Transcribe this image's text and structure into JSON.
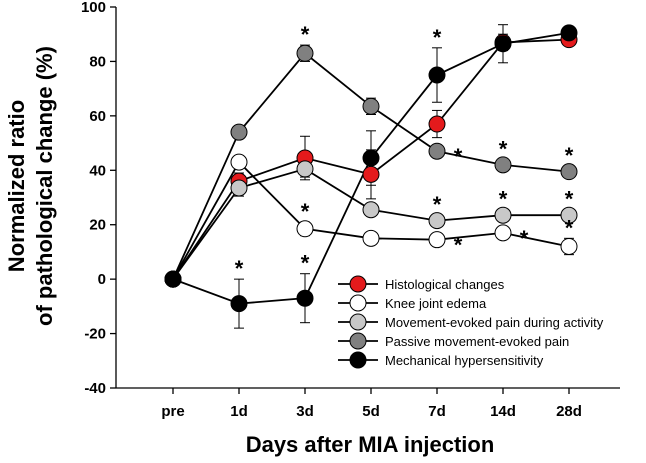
{
  "chart_data": {
    "type": "line",
    "title": "",
    "xlabel": "Days after MIA injection",
    "ylabel_lines": [
      "Normalized ratio",
      "of pathological change (%)"
    ],
    "categories": [
      "pre",
      "1d",
      "3d",
      "5d",
      "7d",
      "14d",
      "28d"
    ],
    "ylim": [
      -40,
      100
    ],
    "yticks": [
      -40,
      -20,
      0,
      20,
      40,
      60,
      80,
      100
    ],
    "grid": false,
    "legend_position": "bottom-right",
    "series": [
      {
        "name": "Histological changes",
        "fill": "#e41a1c",
        "values": [
          0,
          36,
          44.5,
          38.5,
          57,
          87,
          88
        ],
        "errors": [
          0,
          3,
          8,
          9,
          5,
          3,
          2
        ],
        "significance": [
          false,
          false,
          false,
          false,
          false,
          false,
          false
        ]
      },
      {
        "name": "Knee joint edema",
        "fill": "#ffffff",
        "values": [
          0,
          43,
          18.5,
          15,
          14.5,
          17,
          12
        ],
        "errors": [
          0,
          2,
          2.5,
          1.5,
          2,
          2,
          3
        ],
        "significance": [
          false,
          false,
          true,
          false,
          true,
          true,
          true
        ]
      },
      {
        "name": "Movement-evoked pain during activity",
        "fill": "#c8c8c8",
        "values": [
          0,
          33.5,
          40.5,
          25.5,
          21.5,
          23.5,
          23.5
        ],
        "errors": [
          0,
          3,
          3,
          2,
          2,
          2,
          2
        ],
        "significance": [
          false,
          false,
          false,
          false,
          true,
          true,
          true
        ]
      },
      {
        "name": "Passive movement-evoked pain",
        "fill": "#808080",
        "values": [
          0,
          54,
          83,
          63.5,
          47,
          42,
          39.5
        ],
        "errors": [
          0,
          2,
          3,
          3,
          2,
          2,
          2
        ],
        "significance": [
          false,
          false,
          true,
          false,
          true,
          true,
          true
        ]
      },
      {
        "name": "Mechanical hypersensitivity",
        "fill": "#000000",
        "values": [
          0,
          -9,
          -7,
          44.5,
          75,
          86.5,
          90.5
        ],
        "errors": [
          0,
          9,
          9,
          10,
          10,
          7,
          2
        ],
        "significance": [
          false,
          true,
          true,
          false,
          true,
          false,
          false
        ]
      }
    ],
    "star_symbol": "*"
  }
}
